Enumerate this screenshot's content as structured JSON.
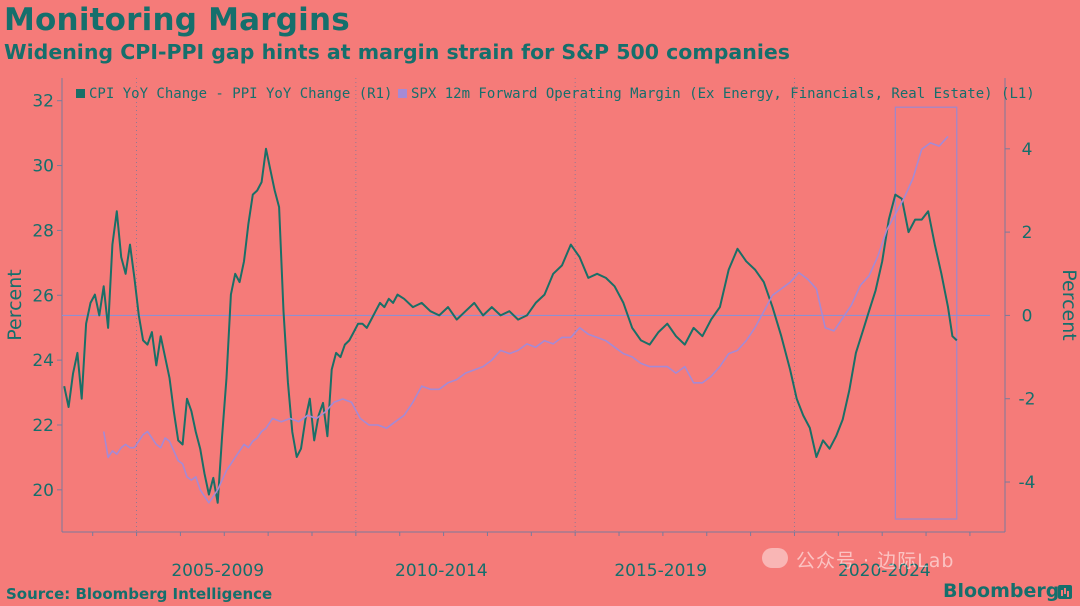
{
  "title": "Monitoring Margins",
  "subtitle": "Widening CPI-PPI gap hints at margin strain for S&P 500 companies",
  "source": "Source: Bloomberg Intelligence",
  "brand": "Bloomberg",
  "watermark": "公众号 · 边际Lab",
  "icons": {
    "brand": "bloomberg-chart-icon",
    "watermark": "wechat-icon"
  },
  "colors": {
    "background": "#f57b79",
    "text": "#156f6c",
    "cpi_ppi_series": "#1a6f67",
    "margin_series": "#a58ad4",
    "zero_line": "#8f8fd0",
    "axis": "#7a7a9a",
    "highlight_box": "#9a88cf"
  },
  "chart_data": {
    "type": "line",
    "title": "Monitoring Margins",
    "subtitle": "Widening CPI-PPI gap hints at margin strain for S&P 500 companies",
    "xlabel": "",
    "ylabel_left": "Percent",
    "ylabel_right": "Percent",
    "x_tick_labels": [
      "2005-2009",
      "2010-2014",
      "2015-2019",
      "2020-2024"
    ],
    "x_range": [
      2003.3,
      2024.8
    ],
    "y_left_ticks": [
      20,
      22,
      24,
      26,
      28,
      30,
      32
    ],
    "y_left_range": [
      18.7,
      32.7
    ],
    "y_right_ticks": [
      -4,
      -2,
      0,
      2,
      4
    ],
    "y_right_range": [
      -5.2,
      5.7
    ],
    "legend_position": "top",
    "zero_line_right": 0,
    "highlight_box": {
      "x": [
        2022.3,
        2023.7
      ],
      "y_left": [
        19.1,
        31.8
      ]
    },
    "series": [
      {
        "name": "CPI YoY Change - PPI YoY Change (R1)",
        "axis": "right",
        "color": "#1a6f67",
        "x": [
          2003.35,
          2003.45,
          2003.55,
          2003.65,
          2003.75,
          2003.85,
          2003.95,
          2004.05,
          2004.15,
          2004.25,
          2004.35,
          2004.45,
          2004.55,
          2004.65,
          2004.75,
          2004.85,
          2004.95,
          2005.05,
          2005.15,
          2005.25,
          2005.35,
          2005.45,
          2005.55,
          2005.65,
          2005.75,
          2005.85,
          2005.95,
          2006.05,
          2006.15,
          2006.25,
          2006.35,
          2006.45,
          2006.55,
          2006.65,
          2006.75,
          2006.85,
          2006.95,
          2007.05,
          2007.15,
          2007.25,
          2007.35,
          2007.45,
          2007.55,
          2007.65,
          2007.75,
          2007.85,
          2007.95,
          2008.05,
          2008.15,
          2008.25,
          2008.35,
          2008.45,
          2008.55,
          2008.65,
          2008.75,
          2008.85,
          2008.95,
          2009.05,
          2009.15,
          2009.25,
          2009.35,
          2009.45,
          2009.55,
          2009.65,
          2009.75,
          2009.85,
          2009.95,
          2010.05,
          2010.15,
          2010.25,
          2010.35,
          2010.45,
          2010.55,
          2010.65,
          2010.75,
          2010.85,
          2010.95,
          2011.1,
          2011.3,
          2011.5,
          2011.7,
          2011.9,
          2012.1,
          2012.3,
          2012.5,
          2012.7,
          2012.9,
          2013.1,
          2013.3,
          2013.5,
          2013.7,
          2013.9,
          2014.1,
          2014.3,
          2014.5,
          2014.7,
          2014.9,
          2015.1,
          2015.3,
          2015.5,
          2015.7,
          2015.9,
          2016.1,
          2016.3,
          2016.5,
          2016.7,
          2016.9,
          2017.1,
          2017.3,
          2017.5,
          2017.7,
          2017.9,
          2018.1,
          2018.3,
          2018.5,
          2018.7,
          2018.9,
          2019.1,
          2019.3,
          2019.5,
          2019.7,
          2019.9,
          2020.05,
          2020.2,
          2020.35,
          2020.5,
          2020.65,
          2020.8,
          2020.95,
          2021.1,
          2021.25,
          2021.4,
          2021.55,
          2021.7,
          2021.85,
          2022.0,
          2022.15,
          2022.3,
          2022.45,
          2022.6,
          2022.75,
          2022.9,
          2023.05,
          2023.2,
          2023.35,
          2023.5,
          2023.6,
          2023.7
        ],
        "values": [
          -1.7,
          -2.2,
          -1.4,
          -0.9,
          -2.0,
          -0.2,
          0.3,
          0.5,
          0.0,
          0.7,
          -0.3,
          1.7,
          2.5,
          1.4,
          1.0,
          1.7,
          0.9,
          0.0,
          -0.6,
          -0.7,
          -0.4,
          -1.2,
          -0.5,
          -1.0,
          -1.5,
          -2.3,
          -3.0,
          -3.1,
          -2.0,
          -2.3,
          -2.8,
          -3.2,
          -3.8,
          -4.3,
          -3.9,
          -4.5,
          -2.9,
          -1.5,
          0.5,
          1.0,
          0.8,
          1.3,
          2.2,
          2.9,
          3.0,
          3.2,
          4.0,
          3.5,
          3.0,
          2.6,
          0.1,
          -1.6,
          -2.8,
          -3.4,
          -3.2,
          -2.5,
          -2.0,
          -3.0,
          -2.4,
          -2.1,
          -2.9,
          -1.3,
          -0.9,
          -1.0,
          -0.7,
          -0.6,
          -0.4,
          -0.2,
          -0.2,
          -0.3,
          -0.1,
          0.1,
          0.3,
          0.2,
          0.4,
          0.3,
          0.5,
          0.4,
          0.2,
          0.3,
          0.1,
          0.0,
          0.2,
          -0.1,
          0.1,
          0.3,
          0.0,
          0.2,
          0.0,
          0.1,
          -0.1,
          0.0,
          0.3,
          0.5,
          1.0,
          1.2,
          1.7,
          1.4,
          0.9,
          1.0,
          0.9,
          0.7,
          0.3,
          -0.3,
          -0.6,
          -0.7,
          -0.4,
          -0.2,
          -0.5,
          -0.7,
          -0.3,
          -0.5,
          -0.1,
          0.2,
          1.1,
          1.6,
          1.3,
          1.1,
          0.8,
          0.2,
          -0.5,
          -1.3,
          -2.0,
          -2.4,
          -2.7,
          -3.4,
          -3.0,
          -3.2,
          -2.9,
          -2.5,
          -1.8,
          -0.9,
          -0.4,
          0.1,
          0.6,
          1.3,
          2.3,
          2.9,
          2.8,
          2.0,
          2.3,
          2.3,
          2.5,
          1.7,
          1.0,
          0.2,
          -0.5,
          -0.6
        ]
      },
      {
        "name": "SPX 12m Forward Operating Margin (Ex Energy, Financials, Real Estate) (L1)",
        "axis": "left",
        "color": "#a58ad4",
        "x": [
          2004.25,
          2004.35,
          2004.45,
          2004.55,
          2004.65,
          2004.75,
          2004.85,
          2004.95,
          2005.05,
          2005.15,
          2005.25,
          2005.35,
          2005.45,
          2005.55,
          2005.65,
          2005.75,
          2005.85,
          2005.95,
          2006.05,
          2006.15,
          2006.25,
          2006.35,
          2006.45,
          2006.55,
          2006.65,
          2006.75,
          2006.85,
          2006.95,
          2007.05,
          2007.15,
          2007.25,
          2007.35,
          2007.45,
          2007.55,
          2007.65,
          2007.75,
          2007.85,
          2007.95,
          2008.1,
          2008.3,
          2008.5,
          2008.7,
          2008.9,
          2009.1,
          2009.3,
          2009.5,
          2009.7,
          2009.9,
          2010.1,
          2010.3,
          2010.5,
          2010.7,
          2010.9,
          2011.1,
          2011.3,
          2011.5,
          2011.7,
          2011.9,
          2012.1,
          2012.3,
          2012.5,
          2012.7,
          2012.9,
          2013.1,
          2013.3,
          2013.5,
          2013.7,
          2013.9,
          2014.1,
          2014.3,
          2014.5,
          2014.7,
          2014.9,
          2015.1,
          2015.3,
          2015.5,
          2015.7,
          2015.9,
          2016.1,
          2016.3,
          2016.5,
          2016.7,
          2016.9,
          2017.1,
          2017.3,
          2017.5,
          2017.7,
          2017.9,
          2018.1,
          2018.3,
          2018.5,
          2018.7,
          2018.9,
          2019.1,
          2019.3,
          2019.5,
          2019.7,
          2019.9,
          2020.1,
          2020.3,
          2020.5,
          2020.7,
          2020.9,
          2021.1,
          2021.3,
          2021.5,
          2021.7,
          2021.9,
          2022.1,
          2022.3,
          2022.5,
          2022.7,
          2022.9,
          2023.1,
          2023.3,
          2023.5
        ],
        "values": [
          21.8,
          21.0,
          21.2,
          21.1,
          21.3,
          21.4,
          21.3,
          21.3,
          21.5,
          21.7,
          21.8,
          21.6,
          21.4,
          21.3,
          21.6,
          21.5,
          21.2,
          20.9,
          20.8,
          20.4,
          20.3,
          20.4,
          20.0,
          19.8,
          19.6,
          19.8,
          20.0,
          20.3,
          20.6,
          20.8,
          21.0,
          21.2,
          21.4,
          21.3,
          21.5,
          21.6,
          21.8,
          21.9,
          22.2,
          22.1,
          22.2,
          22.1,
          22.3,
          22.2,
          22.4,
          22.7,
          22.8,
          22.7,
          22.2,
          22.0,
          22.0,
          21.9,
          22.1,
          22.3,
          22.7,
          23.2,
          23.1,
          23.1,
          23.3,
          23.4,
          23.6,
          23.7,
          23.8,
          24.0,
          24.3,
          24.2,
          24.3,
          24.5,
          24.4,
          24.6,
          24.5,
          24.7,
          24.7,
          25.0,
          24.8,
          24.7,
          24.6,
          24.4,
          24.2,
          24.1,
          23.9,
          23.8,
          23.8,
          23.8,
          23.6,
          23.8,
          23.3,
          23.3,
          23.5,
          23.8,
          24.2,
          24.3,
          24.6,
          25.0,
          25.5,
          26.0,
          26.2,
          26.4,
          26.7,
          26.5,
          26.2,
          25.0,
          24.9,
          25.3,
          25.7,
          26.3,
          26.6,
          27.2,
          28.0,
          28.5,
          29.0,
          29.6,
          30.5,
          30.7,
          30.6,
          30.9
        ]
      }
    ]
  }
}
